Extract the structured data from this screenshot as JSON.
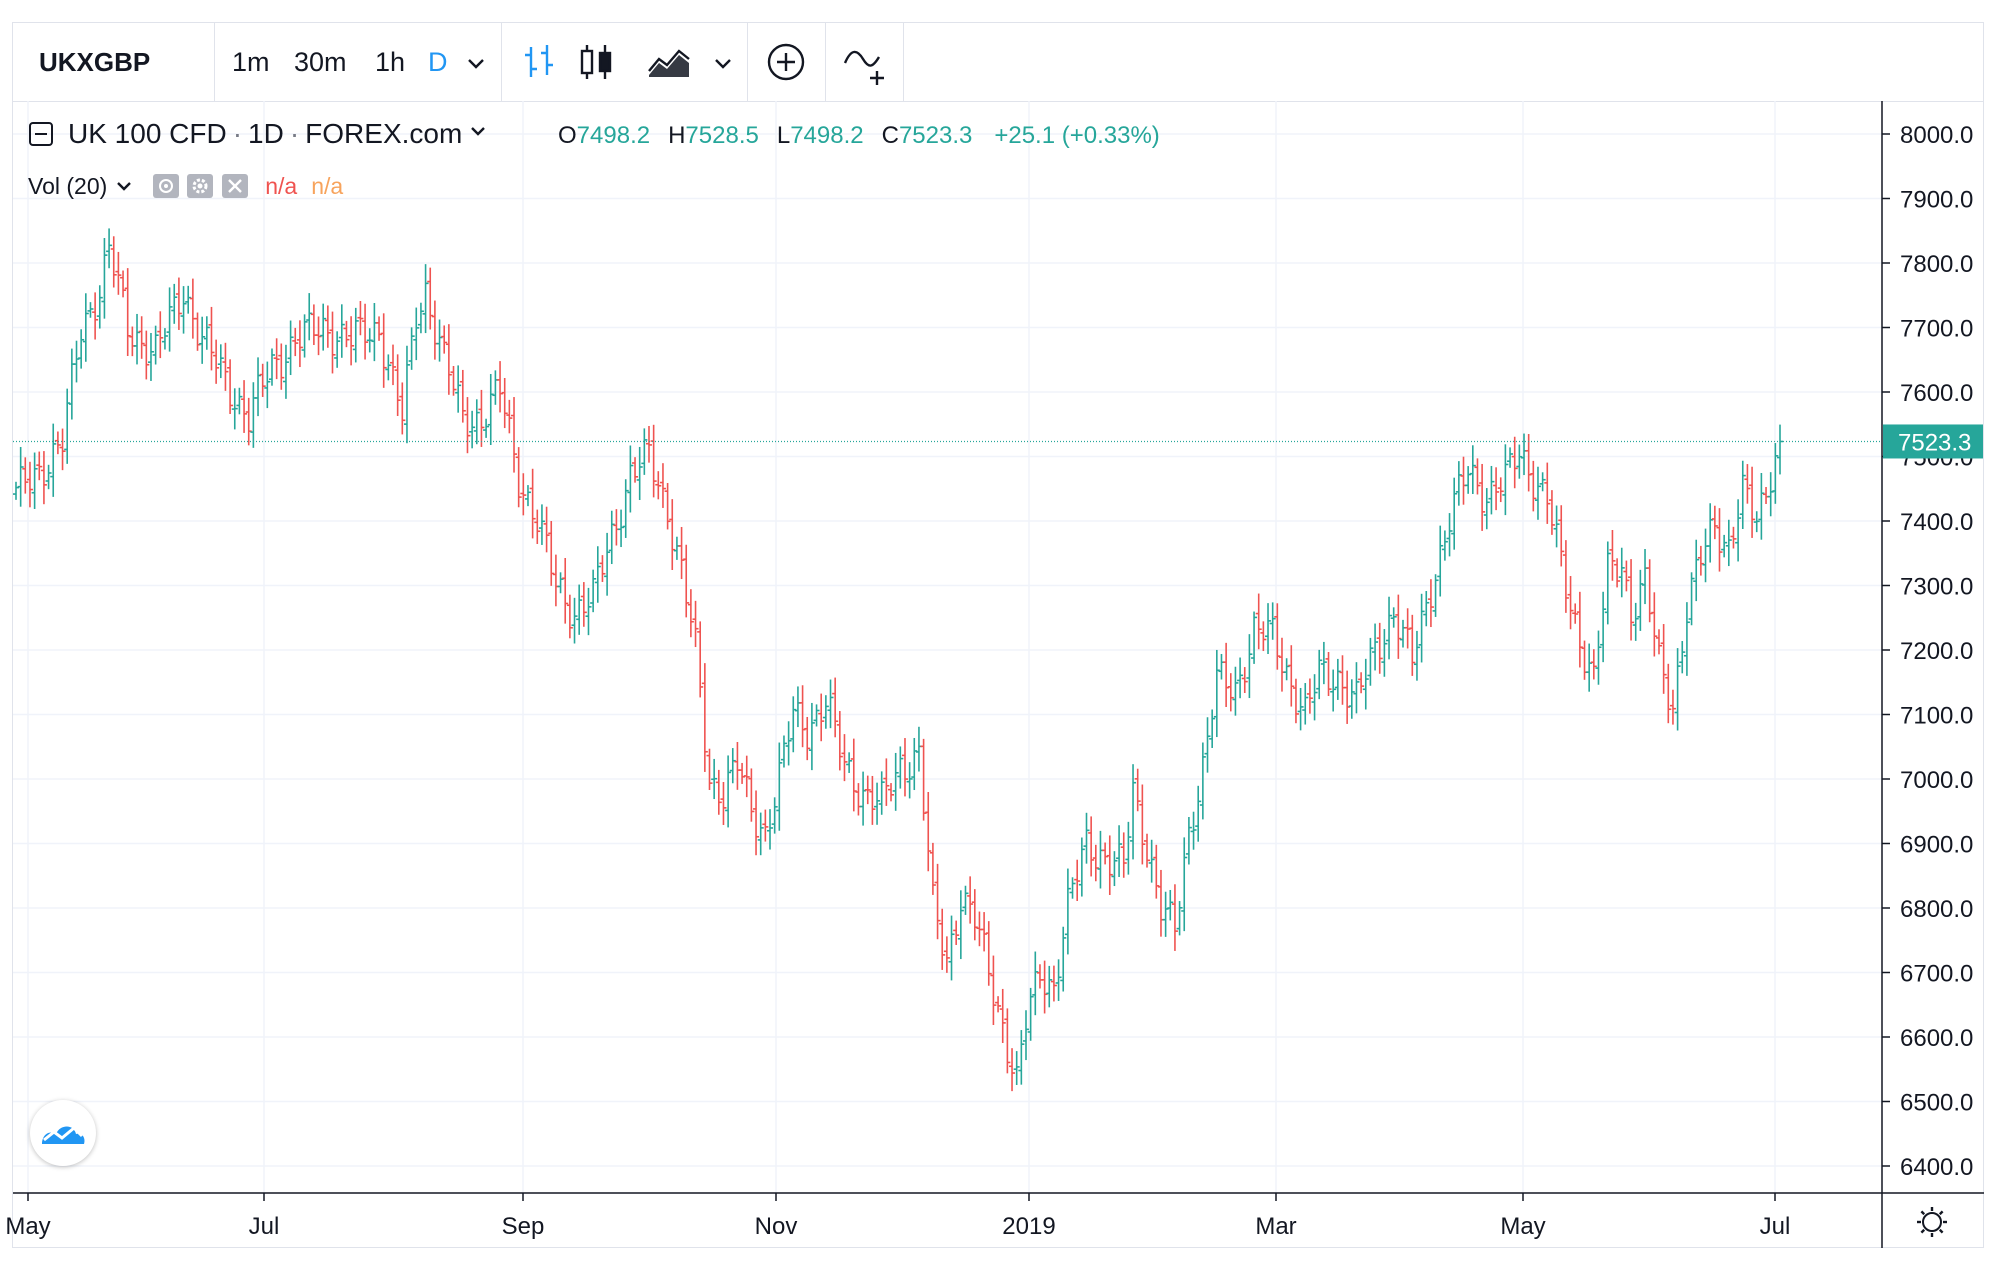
{
  "toolbar": {
    "symbol": "UKXGBP",
    "intervals": [
      "1m",
      "30m",
      "1h",
      "D"
    ],
    "active_interval": "D",
    "icons": [
      "bars-icon",
      "candles-icon",
      "area-chart-icon",
      "chevron-down-icon",
      "add-compare-icon",
      "indicators-icon"
    ]
  },
  "legend": {
    "collapse_icon": "minus-square-icon",
    "title": "UK 100 CFD",
    "sep1": "·",
    "interval": "1D",
    "sep2": "·",
    "source": "FOREX.com",
    "o_label": "O",
    "o_value": "7498.2",
    "h_label": "H",
    "h_value": "7528.5",
    "l_label": "L",
    "l_value": "7498.2",
    "c_label": "C",
    "c_value": "7523.3",
    "change": "+25.1 (+0.33%)"
  },
  "volume": {
    "label": "Vol (20)",
    "value1": "n/a",
    "value2": "n/a"
  },
  "colors": {
    "up": "#26a69a",
    "down": "#ef5350",
    "accent": "#2196f3",
    "last_price_bg": "#26a69a"
  },
  "chart_data": {
    "type": "ohlc",
    "x_tick_labels": [
      "May",
      "Jul",
      "Sep",
      "Nov",
      "2019",
      "Mar",
      "May",
      "Jul"
    ],
    "y_tick_labels": [
      "8000.0",
      "7900.0",
      "7800.0",
      "7700.0",
      "7600.0",
      "7500.0",
      "7400.0",
      "7300.0",
      "7200.0",
      "7100.0",
      "7000.0",
      "6900.0",
      "6800.0",
      "6700.0",
      "6600.0",
      "6500.0",
      "6400.0"
    ],
    "ylim": [
      6360,
      8020
    ],
    "last_price": "7523.3",
    "last_value": 7523.3,
    "grid": true,
    "anchors": [
      [
        0,
        7440
      ],
      [
        5,
        7480
      ],
      [
        10,
        7520
      ],
      [
        14,
        7700
      ],
      [
        18,
        7760
      ],
      [
        20,
        7820
      ],
      [
        24,
        7700
      ],
      [
        30,
        7660
      ],
      [
        36,
        7760
      ],
      [
        40,
        7680
      ],
      [
        45,
        7620
      ],
      [
        50,
        7560
      ],
      [
        55,
        7640
      ],
      [
        60,
        7680
      ],
      [
        66,
        7700
      ],
      [
        72,
        7680
      ],
      [
        78,
        7700
      ],
      [
        83,
        7560
      ],
      [
        86,
        7720
      ],
      [
        88,
        7760
      ],
      [
        92,
        7650
      ],
      [
        96,
        7560
      ],
      [
        100,
        7560
      ],
      [
        104,
        7600
      ],
      [
        108,
        7470
      ],
      [
        112,
        7400
      ],
      [
        116,
        7300
      ],
      [
        120,
        7260
      ],
      [
        124,
        7280
      ],
      [
        128,
        7380
      ],
      [
        132,
        7470
      ],
      [
        136,
        7500
      ],
      [
        140,
        7420
      ],
      [
        143,
        7320
      ],
      [
        146,
        7200
      ],
      [
        149,
        7000
      ],
      [
        152,
        6980
      ],
      [
        155,
        7020
      ],
      [
        158,
        6950
      ],
      [
        161,
        6920
      ],
      [
        164,
        7000
      ],
      [
        167,
        7100
      ],
      [
        170,
        7080
      ],
      [
        174,
        7120
      ],
      [
        178,
        7020
      ],
      [
        182,
        6980
      ],
      [
        186,
        6960
      ],
      [
        190,
        7020
      ],
      [
        194,
        7040
      ],
      [
        197,
        6800
      ],
      [
        200,
        6720
      ],
      [
        203,
        6820
      ],
      [
        206,
        6780
      ],
      [
        209,
        6700
      ],
      [
        212,
        6620
      ],
      [
        215,
        6530
      ],
      [
        217,
        6620
      ],
      [
        220,
        6700
      ],
      [
        223,
        6680
      ],
      [
        226,
        6800
      ],
      [
        230,
        6900
      ],
      [
        234,
        6880
      ],
      [
        238,
        6860
      ],
      [
        240,
        6980
      ],
      [
        243,
        6900
      ],
      [
        246,
        6800
      ],
      [
        249,
        6760
      ],
      [
        252,
        6920
      ],
      [
        255,
        7020
      ],
      [
        258,
        7150
      ],
      [
        262,
        7140
      ],
      [
        266,
        7230
      ],
      [
        270,
        7220
      ],
      [
        274,
        7150
      ],
      [
        277,
        7100
      ],
      [
        280,
        7160
      ],
      [
        284,
        7160
      ],
      [
        288,
        7120
      ],
      [
        292,
        7200
      ],
      [
        296,
        7260
      ],
      [
        300,
        7180
      ],
      [
        304,
        7300
      ],
      [
        308,
        7400
      ],
      [
        312,
        7480
      ],
      [
        316,
        7440
      ],
      [
        320,
        7460
      ],
      [
        323,
        7510
      ],
      [
        326,
        7470
      ],
      [
        329,
        7430
      ],
      [
        333,
        7300
      ],
      [
        336,
        7220
      ],
      [
        339,
        7150
      ],
      [
        342,
        7320
      ],
      [
        345,
        7340
      ],
      [
        347,
        7260
      ],
      [
        350,
        7300
      ],
      [
        353,
        7180
      ],
      [
        356,
        7120
      ],
      [
        359,
        7260
      ],
      [
        362,
        7340
      ],
      [
        365,
        7400
      ],
      [
        368,
        7360
      ],
      [
        371,
        7440
      ],
      [
        374,
        7400
      ],
      [
        377,
        7480
      ],
      [
        379,
        7523.3
      ]
    ],
    "n_bars": 380
  }
}
